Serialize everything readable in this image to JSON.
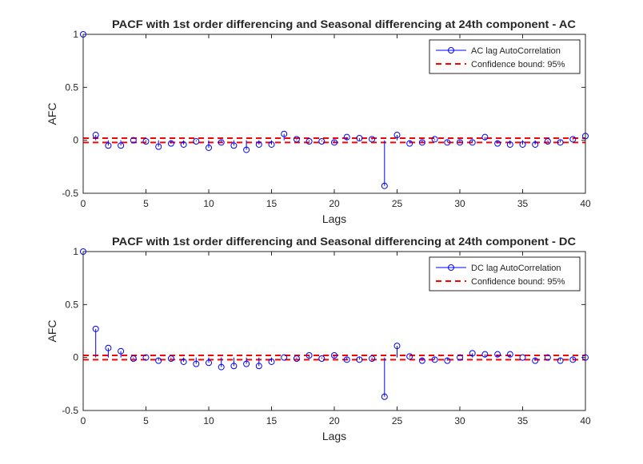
{
  "chart_data": [
    {
      "type": "stem",
      "title": "PACF with 1st order differencing and Seasonal differencing at 24th component - AC",
      "xlabel": "Lags",
      "ylabel": "AFC",
      "xlim": [
        0,
        40
      ],
      "ylim": [
        -0.5,
        1
      ],
      "xticks": [
        "0",
        "5",
        "10",
        "15",
        "20",
        "25",
        "30",
        "35",
        "40"
      ],
      "yticks": [
        "-0.5",
        "0",
        "0.5",
        "1"
      ],
      "grid": false,
      "legend_position": "top-right",
      "confidence_bound": 0.02,
      "series": [
        {
          "name": "AC lag AutoCorrelation",
          "x": [
            0,
            1,
            2,
            3,
            4,
            5,
            6,
            7,
            8,
            9,
            10,
            11,
            12,
            13,
            14,
            15,
            16,
            17,
            18,
            19,
            20,
            21,
            22,
            23,
            24,
            25,
            26,
            27,
            28,
            29,
            30,
            31,
            32,
            33,
            34,
            35,
            36,
            37,
            38,
            39,
            40
          ],
          "values": [
            1.0,
            0.05,
            -0.05,
            -0.05,
            0.0,
            -0.01,
            -0.06,
            -0.03,
            -0.04,
            -0.01,
            -0.07,
            -0.02,
            -0.05,
            -0.09,
            -0.04,
            -0.04,
            0.06,
            0.01,
            -0.01,
            -0.01,
            -0.02,
            0.03,
            0.02,
            0.01,
            -0.43,
            0.05,
            -0.03,
            -0.02,
            0.01,
            -0.02,
            -0.02,
            -0.02,
            0.03,
            -0.03,
            -0.04,
            -0.04,
            -0.04,
            -0.01,
            -0.02,
            0.01,
            0.04
          ]
        },
        {
          "name": "Confidence bound: 95%"
        }
      ],
      "colors": {
        "stem": "#0000ff",
        "bound": "#ff0000"
      }
    },
    {
      "type": "stem",
      "title": "PACF with 1st order differencing and Seasonal differencing at 24th component - DC",
      "xlabel": "Lags",
      "ylabel": "AFC",
      "xlim": [
        0,
        40
      ],
      "ylim": [
        -0.5,
        1
      ],
      "xticks": [
        "0",
        "5",
        "10",
        "15",
        "20",
        "25",
        "30",
        "35",
        "40"
      ],
      "yticks": [
        "-0.5",
        "0",
        "0.5",
        "1"
      ],
      "grid": false,
      "legend_position": "top-right",
      "confidence_bound": 0.02,
      "series": [
        {
          "name": "DC lag AutoCorrelation",
          "x": [
            0,
            1,
            2,
            3,
            4,
            5,
            6,
            7,
            8,
            9,
            10,
            11,
            12,
            13,
            14,
            15,
            16,
            17,
            18,
            19,
            20,
            21,
            22,
            23,
            24,
            25,
            26,
            27,
            28,
            29,
            30,
            31,
            32,
            33,
            34,
            35,
            36,
            37,
            38,
            39,
            40
          ],
          "values": [
            1.0,
            0.27,
            0.09,
            0.06,
            -0.01,
            0.0,
            -0.03,
            -0.01,
            -0.04,
            -0.06,
            -0.05,
            -0.09,
            -0.08,
            -0.06,
            -0.08,
            -0.04,
            0.0,
            -0.01,
            0.02,
            -0.01,
            0.02,
            -0.02,
            -0.02,
            -0.01,
            -0.37,
            0.11,
            0.01,
            -0.03,
            -0.02,
            -0.03,
            0.0,
            0.04,
            0.03,
            0.03,
            0.03,
            0.0,
            -0.03,
            0.0,
            -0.03,
            -0.02,
            0.0
          ]
        },
        {
          "name": "Confidence bound: 95%"
        }
      ],
      "colors": {
        "stem": "#0000ff",
        "bound": "#ff0000"
      }
    }
  ]
}
